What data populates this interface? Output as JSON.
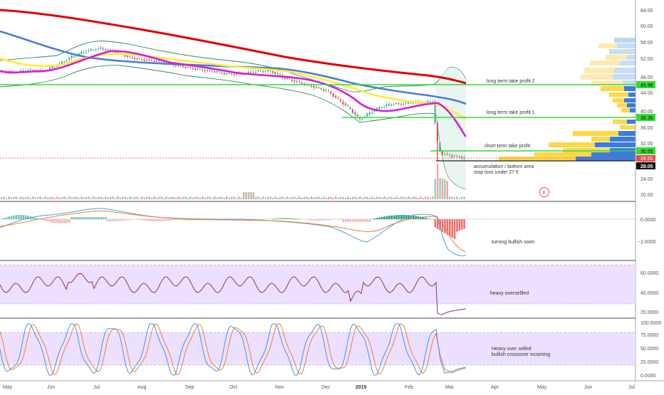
{
  "colors": {
    "ma_red": "#e00000",
    "ma_blue": "#4a7fd4",
    "ma_yellow": "#ffee33",
    "ma_magenta": "#d61ed6",
    "bollinger": "#2e8b57",
    "level_green": "#33dd33",
    "up_candle": "#3aa88f",
    "down_candle": "#e84a4a",
    "rsi_band": "#ede0ff",
    "rsi_line": "#8a2d8a",
    "stoch_k": "#4a90e2",
    "stoch_d": "#f08030"
  },
  "main": {
    "annotations": {
      "tp2": "long term take profit 2",
      "tp1": "long term take profit 1",
      "short_tp": "short term take profit",
      "accum_1": "accumulation / bottom area",
      "accum_2": "stop loss under 27 €"
    },
    "earnings_marker": "E",
    "price_tags": {
      "tp2": "45.96",
      "tp1": "38.36",
      "short_tp": "30.55",
      "last": "28.55",
      "stop": "28.05"
    },
    "y_axis": [
      "64.00",
      "60.00",
      "56.00",
      "52.00",
      "48.00",
      "44.00",
      "40.00",
      "36.00",
      "32.00",
      "28.00",
      "24.00",
      "20.00"
    ]
  },
  "macd": {
    "annotation": "turning bullish soon",
    "y_axis": [
      "0.0000",
      "−2.0000"
    ]
  },
  "rsi": {
    "annotation": "heavy oversellled",
    "y_axis": [
      "60.0000",
      "40.0000",
      "20.0000"
    ]
  },
  "stoch": {
    "annotation_1": "Heavy over selled",
    "annotation_2": "bullish crossover incoming",
    "y_axis": [
      "100.0000",
      "75.0000",
      "50.0000",
      "25.0000",
      "0.0000"
    ]
  },
  "time_axis": [
    "May",
    "Jun",
    "Jul",
    "Aug",
    "Sep",
    "Oct",
    "Nov",
    "Dec",
    "2019",
    "Feb",
    "Mar",
    "Apr",
    "May",
    "Jun",
    "Jul"
  ]
}
